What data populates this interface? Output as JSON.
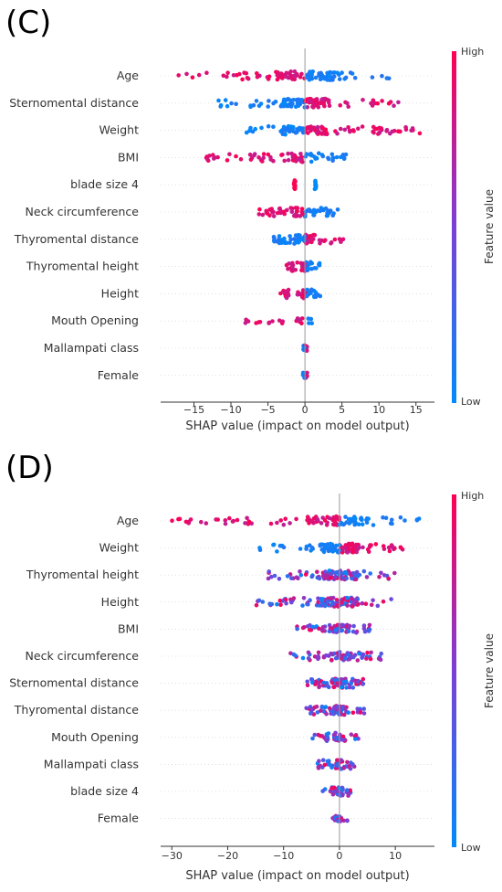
{
  "chart_data": [
    {
      "panel_label": "(C)",
      "type": "scatter",
      "subtype": "shap-beeswarm",
      "xlabel": "SHAP value (impact on model output)",
      "xlim": [
        -19.5,
        17.5
      ],
      "xticks": [
        -15,
        -10,
        -5,
        0,
        5,
        10,
        15
      ],
      "xtick_labels": [
        "−15",
        "−10",
        "−5",
        "0",
        "5",
        "10",
        "15"
      ],
      "colorbar": {
        "title": "Feature value",
        "high_label": "High",
        "low_label": "Low"
      },
      "features": [
        {
          "name": "Age",
          "min": -18.5,
          "max": 11.5,
          "low_side": "positive",
          "spread": "wide"
        },
        {
          "name": "Sternomental distance",
          "min": -11.8,
          "max": 14.2,
          "low_side": "negative",
          "spread": "wide"
        },
        {
          "name": "Weight",
          "min": -8.2,
          "max": 16.3,
          "low_side": "negative",
          "spread": "wide"
        },
        {
          "name": "BMI",
          "min": -14.0,
          "max": 5.8,
          "low_side": "positive",
          "spread": "medium"
        },
        {
          "name": "blade size 4",
          "min": -1.5,
          "max": 1.5,
          "low_side": "positive",
          "spread": "binary"
        },
        {
          "name": "Neck circumference",
          "min": -6.5,
          "max": 4.7,
          "low_side": "positive",
          "spread": "medium"
        },
        {
          "name": "Thyromental distance",
          "min": -4.3,
          "max": 5.5,
          "low_side": "negative",
          "spread": "medium"
        },
        {
          "name": "Thyromental height",
          "min": -2.5,
          "max": 2.0,
          "low_side": "positive",
          "spread": "narrow"
        },
        {
          "name": "Height",
          "min": -3.5,
          "max": 2.2,
          "low_side": "positive",
          "spread": "narrow"
        },
        {
          "name": "Mouth Opening",
          "min": -8.5,
          "max": 0.6,
          "low_side": "positive",
          "spread": "tiny"
        },
        {
          "name": "Mallampati class",
          "min": -0.3,
          "max": 0.4,
          "low_side": "negative",
          "spread": "tiny"
        },
        {
          "name": "Female",
          "min": -0.3,
          "max": 0.3,
          "low_side": "negative",
          "spread": "tiny"
        }
      ]
    },
    {
      "panel_label": "(D)",
      "type": "scatter",
      "subtype": "shap-beeswarm",
      "xlabel": "SHAP value (impact on model output)",
      "xlim": [
        -32,
        17
      ],
      "xticks": [
        -30,
        -20,
        -10,
        0,
        10
      ],
      "xtick_labels": [
        "−30",
        "−20",
        "−10",
        "0",
        "10"
      ],
      "colorbar": {
        "title": "Feature value",
        "high_label": "High",
        "low_label": "Low"
      },
      "features": [
        {
          "name": "Age",
          "min": -30.5,
          "max": 14.5,
          "low_side": "positive",
          "spread": "wide"
        },
        {
          "name": "Weight",
          "min": -16.0,
          "max": 12.0,
          "low_side": "negative",
          "spread": "wide"
        },
        {
          "name": "Thyromental height",
          "min": -13.0,
          "max": 10.0,
          "low_side": "mixed",
          "spread": "wide"
        },
        {
          "name": "Height",
          "min": -17.0,
          "max": 10.5,
          "low_side": "mixed",
          "spread": "wide"
        },
        {
          "name": "BMI",
          "min": -8.0,
          "max": 5.5,
          "low_side": "mixed",
          "spread": "medium"
        },
        {
          "name": "Neck circumference",
          "min": -9.0,
          "max": 7.5,
          "low_side": "mixed",
          "spread": "medium"
        },
        {
          "name": "Sternomental distance",
          "min": -6.0,
          "max": 4.5,
          "low_side": "mixed",
          "spread": "medium"
        },
        {
          "name": "Thyromental distance",
          "min": -6.0,
          "max": 5.0,
          "low_side": "mixed",
          "spread": "medium"
        },
        {
          "name": "Mouth Opening",
          "min": -5.0,
          "max": 3.5,
          "low_side": "mixed",
          "spread": "narrow"
        },
        {
          "name": "Mallampati class",
          "min": -4.0,
          "max": 3.0,
          "low_side": "mixed",
          "spread": "narrow"
        },
        {
          "name": "blade size 4",
          "min": -3.0,
          "max": 2.0,
          "low_side": "mixed",
          "spread": "narrow"
        },
        {
          "name": "Female",
          "min": -1.5,
          "max": 1.5,
          "low_side": "mixed",
          "spread": "tiny"
        }
      ]
    }
  ]
}
